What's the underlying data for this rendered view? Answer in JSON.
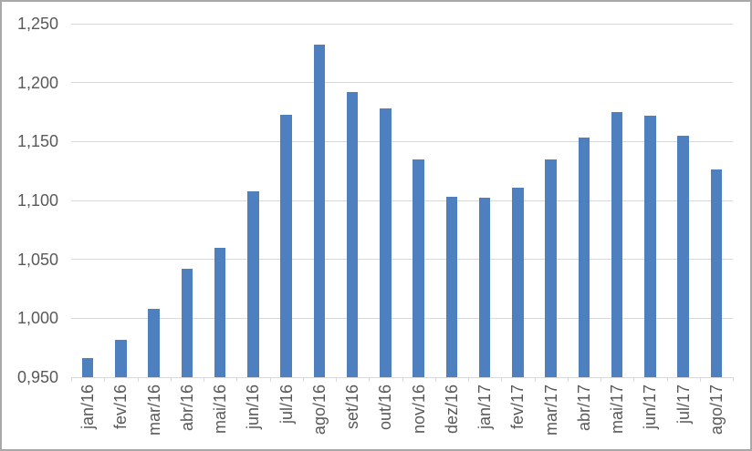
{
  "chart_data": {
    "type": "bar",
    "categories": [
      "jan/16",
      "fev/16",
      "mar/16",
      "abr/16",
      "mai/16",
      "jun/16",
      "jul/16",
      "ago/16",
      "set/16",
      "out/16",
      "nov/16",
      "dez/16",
      "jan/17",
      "fev/17",
      "mar/17",
      "abr/17",
      "mai/17",
      "jun/17",
      "jul/17",
      "ago/17"
    ],
    "values": [
      0.966,
      0.982,
      1.008,
      1.042,
      1.06,
      1.108,
      1.173,
      1.232,
      1.192,
      1.178,
      1.135,
      1.103,
      1.102,
      1.111,
      1.135,
      1.153,
      1.175,
      1.172,
      1.155,
      1.126
    ],
    "ylim": [
      0.95,
      1.25
    ],
    "ytick_step": 0.05,
    "ytick_labels_bottom_to_top": [
      "0,950",
      "1,000",
      "1,050",
      "1,100",
      "1,150",
      "1,200",
      "1,250"
    ],
    "grid": true,
    "legend": false,
    "colors": {
      "bar": "#4e80c0",
      "gridline": "#d9d9d9",
      "axis_text": "#595959",
      "frame_border": "#a8a8a8",
      "background": "#ffffff"
    }
  }
}
